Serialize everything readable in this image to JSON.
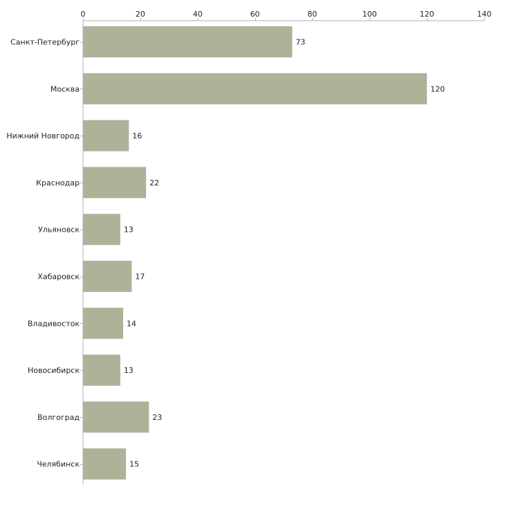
{
  "chart_data": {
    "type": "bar",
    "orientation": "horizontal",
    "title": "",
    "xlabel": "",
    "ylabel": "",
    "xlim": [
      0,
      140
    ],
    "x_ticks": [
      0,
      20,
      40,
      60,
      80,
      100,
      120,
      140
    ],
    "x_axis_position": "top",
    "grid": false,
    "legend": "none",
    "categories": [
      "Санкт-Петербург",
      "Москва",
      "Нижний Новгород",
      "Краснодар",
      "Ульяновск",
      "Хабаровск",
      "Владивосток",
      "Новосибирск",
      "Волгоград",
      "Челябинск"
    ],
    "values": [
      73,
      120,
      16,
      22,
      13,
      17,
      14,
      13,
      23,
      15
    ],
    "bar_color": "#adb299",
    "axis_color": "#b0b0b0"
  }
}
